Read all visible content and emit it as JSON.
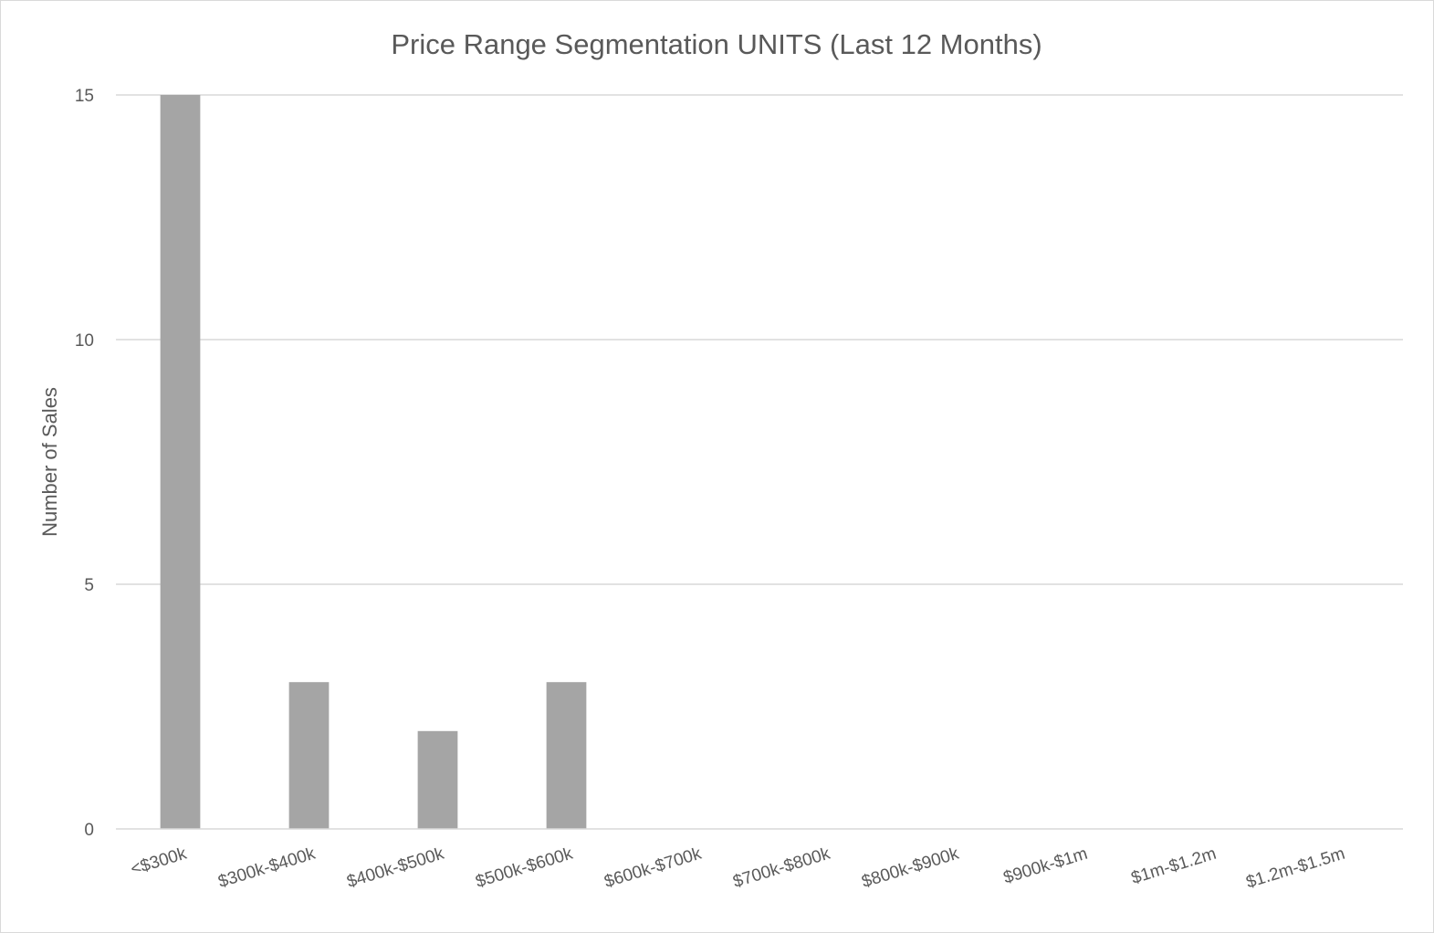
{
  "chart_data": {
    "type": "bar",
    "title": "Price Range Segmentation UNITS (Last 12 Months)",
    "xlabel": "",
    "ylabel": "Number of Sales",
    "categories": [
      "<$300k",
      "$300k-$400k",
      "$400k-$500k",
      "$500k-$600k",
      "$600k-$700k",
      "$700k-$800k",
      "$800k-$900k",
      "$900k-$1m",
      "$1m-$1.2m",
      "$1.2m-$1.5m"
    ],
    "values": [
      15,
      3,
      2,
      3,
      0,
      0,
      0,
      0,
      0,
      0
    ],
    "ylim": [
      0,
      15
    ],
    "yticks": [
      "0",
      "5",
      "10",
      "15"
    ],
    "grid": true,
    "legend": "none",
    "bar_color": "#a5a5a5",
    "grid_color": "#d9d9d9"
  }
}
